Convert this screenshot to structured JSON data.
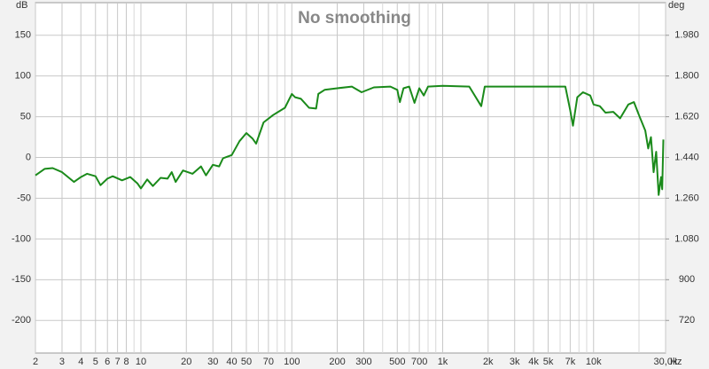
{
  "chart_data": {
    "type": "line",
    "title": "No smoothing",
    "ylabel": "dB",
    "y2label": "deg",
    "xlabel": "Hz",
    "xscale": "log",
    "grid": true,
    "xlim": [
      2,
      30000
    ],
    "ylim": [
      -240,
      190
    ],
    "y2lim": [
      576,
      2124
    ],
    "xticks": [
      2,
      3,
      4,
      5,
      6,
      7,
      8,
      10,
      20,
      30,
      40,
      50,
      70,
      100,
      200,
      300,
      500,
      700,
      {
        "value": 1000,
        "label": "1k"
      },
      {
        "value": 2000,
        "label": "2k"
      },
      {
        "value": 3000,
        "label": "3k"
      },
      {
        "value": 4000,
        "label": "4k"
      },
      {
        "value": 5000,
        "label": "5k"
      },
      {
        "value": 7000,
        "label": "7k"
      },
      {
        "value": 10000,
        "label": "10k"
      },
      {
        "value": 30000,
        "label": "30,0k"
      }
    ],
    "xminorticks": [
      9,
      60,
      80,
      90,
      400,
      600,
      800,
      900,
      6000,
      8000,
      9000,
      20000
    ],
    "yticks": [
      -200,
      -150,
      -100,
      -50,
      0,
      50,
      100,
      150
    ],
    "y2ticks": [
      720,
      900,
      {
        "value": 1080,
        "label": "1.080"
      },
      {
        "value": 1260,
        "label": "1.260"
      },
      {
        "value": 1440,
        "label": "1.440"
      },
      {
        "value": 1620,
        "label": "1.620"
      },
      {
        "value": 1800,
        "label": "1.800"
      },
      {
        "value": 1980,
        "label": "1.980"
      }
    ],
    "series": [
      {
        "color": "#1a8a1a",
        "x": [
          2,
          2.3,
          2.6,
          3,
          3.6,
          4,
          4.4,
          5,
          5.4,
          6,
          6.5,
          7.5,
          8.5,
          9.5,
          10,
          11,
          12,
          13.5,
          15,
          16,
          17,
          19,
          22,
          25,
          27,
          30,
          33,
          35,
          40,
          45,
          50,
          55,
          58,
          65,
          75,
          90,
          100,
          105,
          115,
          130,
          145,
          150,
          165,
          200,
          250,
          290,
          350,
          450,
          500,
          520,
          550,
          600,
          650,
          700,
          750,
          800,
          1000,
          1500,
          1800,
          1900,
          3000,
          5000,
          6500,
          7000,
          7300,
          7800,
          8500,
          9500,
          10000,
          11000,
          12000,
          13500,
          15000,
          17000,
          18500,
          20000,
          22000,
          23000,
          24000,
          25000,
          26000,
          27000,
          28000,
          28500,
          29000
        ],
        "values": [
          -22,
          -14,
          -13,
          -18,
          -30,
          -24,
          -20,
          -23,
          -34,
          -26,
          -23,
          -28,
          -24,
          -32,
          -38,
          -27,
          -35,
          -25,
          -26,
          -18,
          -30,
          -16,
          -20,
          -11,
          -22,
          -9,
          -11,
          -1,
          3,
          20,
          30,
          23,
          17,
          43,
          52,
          61,
          78,
          74,
          72,
          61,
          60,
          78,
          83,
          85,
          87,
          80,
          86,
          87,
          83,
          68,
          85,
          87,
          67,
          85,
          76,
          87,
          88,
          87,
          63,
          87,
          87,
          87,
          87,
          58,
          39,
          74,
          80,
          76,
          65,
          63,
          55,
          56,
          48,
          65,
          68,
          52,
          33,
          11,
          25,
          -18,
          7,
          -46,
          -24,
          -39,
          22
        ]
      }
    ]
  }
}
